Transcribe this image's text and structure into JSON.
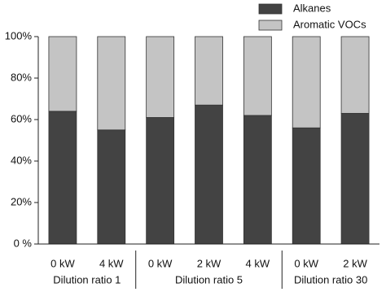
{
  "chart_data": {
    "type": "stacked-bar",
    "groups": [
      {
        "name": "Dilution ratio 1",
        "categories": [
          "0 kW",
          "4 kW"
        ]
      },
      {
        "name": "Dilution ratio 5",
        "categories": [
          "0 kW",
          "2 kW",
          "4 kW"
        ]
      },
      {
        "name": "Dilution ratio 30",
        "categories": [
          "0 kW",
          "2 kW"
        ]
      }
    ],
    "series": [
      {
        "name": "Alkanes",
        "color": "#434343",
        "values": [
          64,
          55,
          61,
          67,
          62,
          56,
          63
        ]
      },
      {
        "name": "Aromatic VOCs",
        "color": "#c4c4c4",
        "values": [
          36,
          45,
          39,
          33,
          38,
          44,
          37
        ]
      }
    ],
    "ylim": [
      0,
      100
    ],
    "yticks": [
      {
        "value": 0,
        "label": "0 %"
      },
      {
        "value": 20,
        "label": "20%"
      },
      {
        "value": 40,
        "label": "40%"
      },
      {
        "value": 60,
        "label": "60%"
      },
      {
        "value": 80,
        "label": "80%"
      },
      {
        "value": 100,
        "label": "100%"
      }
    ],
    "legend": "top-right"
  }
}
